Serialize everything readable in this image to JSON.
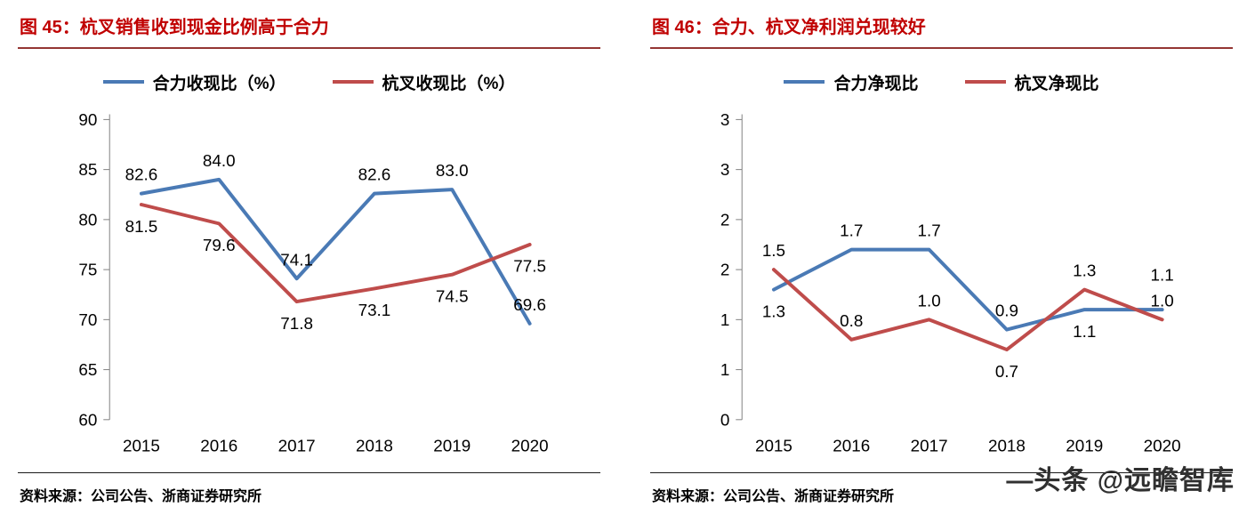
{
  "watermark": "—头条 @远瞻智库",
  "chart_data": [
    {
      "type": "line",
      "title": "图 45：杭叉销售收到现金比例高于合力",
      "source": "资料来源：公司公告、浙商证券研究所",
      "categories": [
        "2015",
        "2016",
        "2017",
        "2018",
        "2019",
        "2020"
      ],
      "series": [
        {
          "name": "合力收现比（%）",
          "color": "#4a7ab5",
          "values": [
            82.6,
            84.0,
            74.1,
            82.6,
            83.0,
            69.6
          ],
          "label_positions": [
            "above",
            "above",
            "above",
            "above",
            "above",
            "above"
          ]
        },
        {
          "name": "杭叉收现比（%）",
          "color": "#bf4c4b",
          "values": [
            81.5,
            79.6,
            71.8,
            73.1,
            74.5,
            77.5
          ],
          "label_positions": [
            "below",
            "below",
            "below",
            "below",
            "below",
            "below"
          ]
        }
      ],
      "ylim": [
        60,
        90
      ],
      "ytick_values": [
        60,
        65,
        70,
        75,
        80,
        85,
        90
      ],
      "ytick_labels": [
        "60",
        "65",
        "70",
        "75",
        "80",
        "85",
        "90"
      ],
      "label_decimals": 1,
      "grid": false,
      "legend_position": "top",
      "xlabel": "",
      "ylabel": ""
    },
    {
      "type": "line",
      "title": "图 46：合力、杭叉净利润兑现较好",
      "source": "资料来源：公司公告、浙商证券研究所",
      "categories": [
        "2015",
        "2016",
        "2017",
        "2018",
        "2019",
        "2020"
      ],
      "series": [
        {
          "name": "合力净现比",
          "color": "#4a7ab5",
          "values": [
            1.3,
            1.7,
            1.7,
            0.9,
            1.1,
            1.1
          ],
          "label_positions": [
            "below",
            "above",
            "above",
            "above",
            "below",
            "above-high"
          ]
        },
        {
          "name": "杭叉净现比",
          "color": "#bf4c4b",
          "values": [
            1.5,
            0.8,
            1.0,
            0.7,
            1.3,
            1.0
          ],
          "label_positions": [
            "above",
            "above",
            "above",
            "below",
            "above",
            "above"
          ]
        }
      ],
      "ylim": [
        0,
        3
      ],
      "ytick_values": [
        0,
        0.5,
        1,
        1.5,
        2,
        2.5,
        3
      ],
      "ytick_labels": [
        "0",
        "1",
        "1",
        "2",
        "2",
        "3",
        "3"
      ],
      "label_decimals": 1,
      "grid": false,
      "legend_position": "top",
      "xlabel": "",
      "ylabel": ""
    }
  ]
}
